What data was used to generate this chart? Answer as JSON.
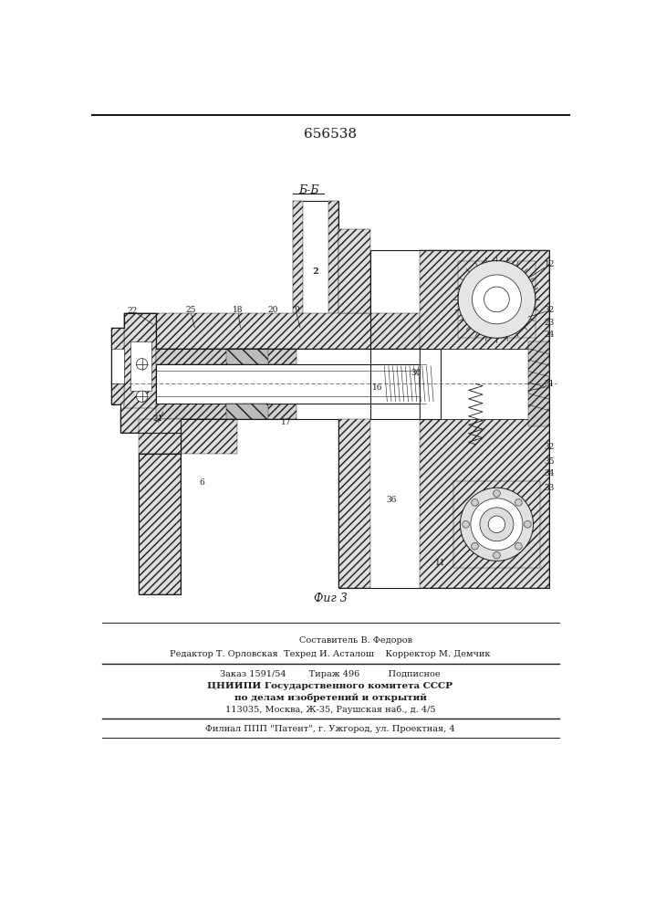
{
  "patent_number": "656538",
  "fig_label": "Фиг 3",
  "section_label": "Б-Б",
  "line_color": "#1a1a1a",
  "footer_lines": [
    "Составитель В. Федоров",
    "Редактор Т. Орловская  Техред И. Асталош    Корректор М. Демчик",
    "Заказ 1591/54        Тираж 496          Подписное",
    "ЦНИИПИ Государственного комитета СССР",
    "по делам изобретений и открытий",
    "113035, Москва, Ж-35, Раушская наб., д. 4/5",
    "Филиал ППП \"Патент\", г. Ужгород, ул. Проектная, 4"
  ]
}
